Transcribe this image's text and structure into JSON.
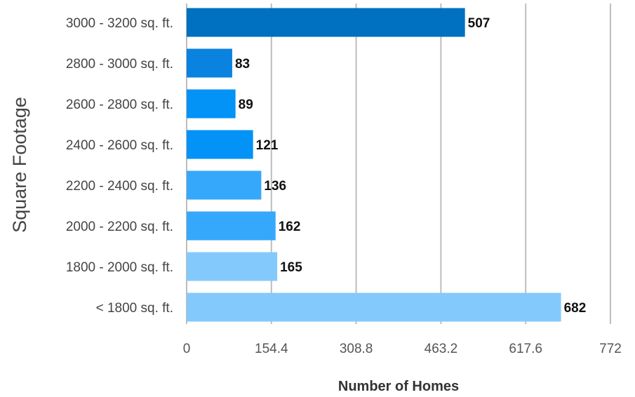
{
  "chart_data": {
    "type": "bar",
    "orientation": "horizontal",
    "categories": [
      "3000 - 3200 sq. ft.",
      "2800 - 3000 sq. ft.",
      "2600 - 2800 sq. ft.",
      "2400 - 2600 sq. ft.",
      "2200 - 2400 sq. ft.",
      "2000 - 2200 sq. ft.",
      "1800 - 2000 sq. ft.",
      "< 1800 sq. ft."
    ],
    "values": [
      507,
      83,
      89,
      121,
      136,
      162,
      165,
      682
    ],
    "value_labels": [
      "507",
      "83",
      "89",
      "121",
      "136",
      "162",
      "165",
      "682"
    ],
    "colors": [
      "#0070c0",
      "#0a82e0",
      "#0392f5",
      "#0392f5",
      "#36a8fb",
      "#36a8fb",
      "#84c9fc",
      "#84c9fc"
    ],
    "xlabel": "Number of Homes",
    "ylabel": "Square Footage",
    "xlim": [
      0,
      772
    ],
    "xticks": [
      "0",
      "154.4",
      "308.8",
      "463.2",
      "617.6",
      "772"
    ],
    "grid": "vertical",
    "legend": "none"
  }
}
